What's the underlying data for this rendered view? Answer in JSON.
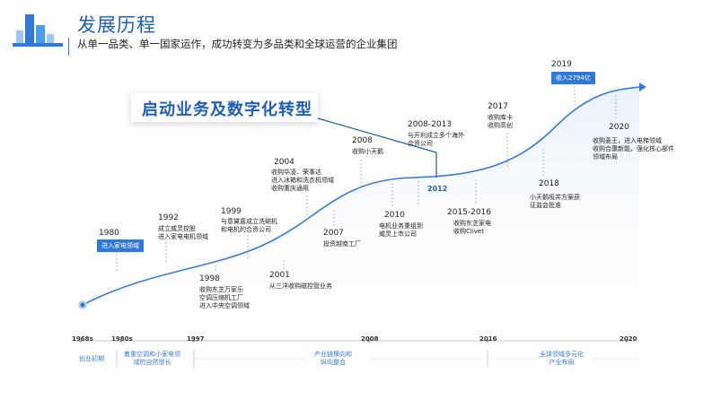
{
  "header": {
    "title": "发展历程",
    "subtitle": "从单一品类、单一国家运作，成功转变为多品类和全球运营的企业集团"
  },
  "banner": "启动业务及数字化转型",
  "milestones": [
    {
      "year": "1980",
      "badge": "进入家电领域"
    },
    {
      "year": "1992",
      "lines": [
        "成立威灵控股",
        "进入家电电机领域"
      ]
    },
    {
      "year": "1998",
      "lines": [
        "收购东芝万家乐",
        "空调压缩机工厂",
        "进入中央空调领域"
      ]
    },
    {
      "year": "1999",
      "lines": [
        "与意黛嘉成立洗碗机",
        "和电机的合资公司"
      ]
    },
    {
      "year": "2001",
      "lines": [
        "从三洋收购磁控管业务"
      ]
    },
    {
      "year": "2004",
      "lines": [
        "收购华凌、荣事达",
        "进入冰箱和洗衣机领域",
        "收购重庆通用"
      ]
    },
    {
      "year": "2007",
      "lines": [
        "投资越南工厂"
      ]
    },
    {
      "year": "2008",
      "lines": [
        "收购小天鹅"
      ]
    },
    {
      "year": "2008-2013",
      "lines": [
        "与开利成立多个海外",
        "合资公司"
      ]
    },
    {
      "year": "2010",
      "lines": [
        "电机业务重组到",
        "威灵上市公司"
      ]
    },
    {
      "year": "2012",
      "lines": []
    },
    {
      "year": "2015-2016",
      "lines": [
        "收购东芝家电",
        "收购Clivet"
      ]
    },
    {
      "year": "2017",
      "lines": [
        "收购库卡",
        "收购高创"
      ]
    },
    {
      "year": "2018",
      "lines": [
        "小天鹅吸并方案获",
        "证监会批准"
      ]
    },
    {
      "year": "2019",
      "badge": "收入2794亿"
    },
    {
      "year": "2020",
      "lines": [
        "收购菱王，进入电梯领域",
        "收购合康新能，强化核心部件",
        "领域布局"
      ]
    }
  ],
  "timeline": {
    "years": [
      "1968s",
      "1980s",
      "1997",
      "2008",
      "2016",
      "2020"
    ],
    "stages": [
      {
        "label": [
          "创业初期"
        ]
      },
      {
        "label": [
          "着重空调和小家电领",
          "域的自然增长"
        ]
      },
      {
        "label": [
          "产业链横向和",
          "纵向整合"
        ]
      },
      {
        "label": [
          "全球领域多元化",
          "产业布局"
        ]
      }
    ]
  },
  "colors": {
    "accent": "#2f79d4",
    "title": "#1f5fb3",
    "curve": "#3a7bd5"
  }
}
